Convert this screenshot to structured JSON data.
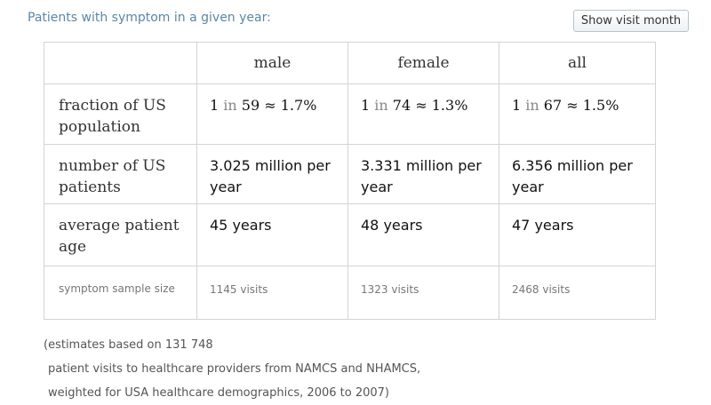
{
  "header": {
    "title": "Patients with symptom in a given year:",
    "button_label": "Show visit month"
  },
  "table": {
    "columns": [
      "male",
      "female",
      "all"
    ],
    "rows": [
      {
        "label": "fraction of US population",
        "cells": [
          {
            "one": "1",
            "in": "in",
            "n": "59",
            "approx": "≈",
            "pct": "1.7%"
          },
          {
            "one": "1",
            "in": "in",
            "n": "74",
            "approx": "≈",
            "pct": "1.3%"
          },
          {
            "one": "1",
            "in": "in",
            "n": "67",
            "approx": "≈",
            "pct": "1.5%"
          }
        ]
      },
      {
        "label": "number of US patients",
        "cells": [
          "3.025 million per year",
          "3.331 million per year",
          "6.356 million per year"
        ]
      },
      {
        "label": "average patient age",
        "cells": [
          "45 years",
          "48 years",
          "47 years"
        ]
      },
      {
        "label": "symptom sample size",
        "cells": [
          "1145 visits",
          "1323 visits",
          "2468 visits"
        ]
      }
    ]
  },
  "note": {
    "line1": "(estimates based on 131 748",
    "line2": "patient visits to healthcare providers from NAMCS and NHAMCS,",
    "line3": "weighted for USA healthcare demographics, 2006 to 2007)"
  }
}
